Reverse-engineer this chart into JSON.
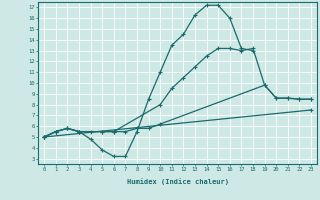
{
  "xlabel": "Humidex (Indice chaleur)",
  "bg_color": "#cde8e5",
  "grid_color": "#ffffff",
  "line_color": "#1a6b6b",
  "xlim": [
    -0.5,
    23.5
  ],
  "ylim": [
    2.5,
    17.5
  ],
  "xticks": [
    0,
    1,
    2,
    3,
    4,
    5,
    6,
    7,
    8,
    9,
    10,
    11,
    12,
    13,
    14,
    15,
    16,
    17,
    18,
    19,
    20,
    21,
    22,
    23
  ],
  "yticks": [
    3,
    4,
    5,
    6,
    7,
    8,
    9,
    10,
    11,
    12,
    13,
    14,
    15,
    16,
    17
  ],
  "line1_x": [
    0,
    1,
    2,
    3,
    4,
    5,
    6,
    7,
    8,
    9,
    10,
    11,
    12,
    13,
    14,
    15,
    16,
    17,
    18
  ],
  "line1_y": [
    5.0,
    5.5,
    5.8,
    5.5,
    4.8,
    3.8,
    3.2,
    3.2,
    5.5,
    8.5,
    11.0,
    13.5,
    14.5,
    16.3,
    17.2,
    17.2,
    16.0,
    13.2,
    13.0
  ],
  "line2_x": [
    0,
    1,
    2,
    3,
    5,
    6,
    10,
    11,
    12,
    13,
    14,
    15,
    16,
    17,
    18,
    19,
    20,
    21,
    22,
    23
  ],
  "line2_y": [
    5.0,
    5.5,
    5.8,
    5.5,
    5.5,
    5.5,
    8.0,
    9.5,
    10.5,
    11.5,
    12.5,
    13.2,
    13.2,
    13.0,
    13.2,
    9.8,
    8.6,
    8.6,
    8.5,
    8.5
  ],
  "line3_x": [
    0,
    1,
    2,
    3,
    4,
    5,
    6,
    7,
    8,
    9,
    10,
    19,
    20,
    21,
    22,
    23
  ],
  "line3_y": [
    5.0,
    5.5,
    5.8,
    5.5,
    5.5,
    5.5,
    5.5,
    5.5,
    5.8,
    5.8,
    6.2,
    9.8,
    8.6,
    8.6,
    8.5,
    8.5
  ],
  "line4_x": [
    0,
    23
  ],
  "line4_y": [
    5.0,
    7.5
  ]
}
